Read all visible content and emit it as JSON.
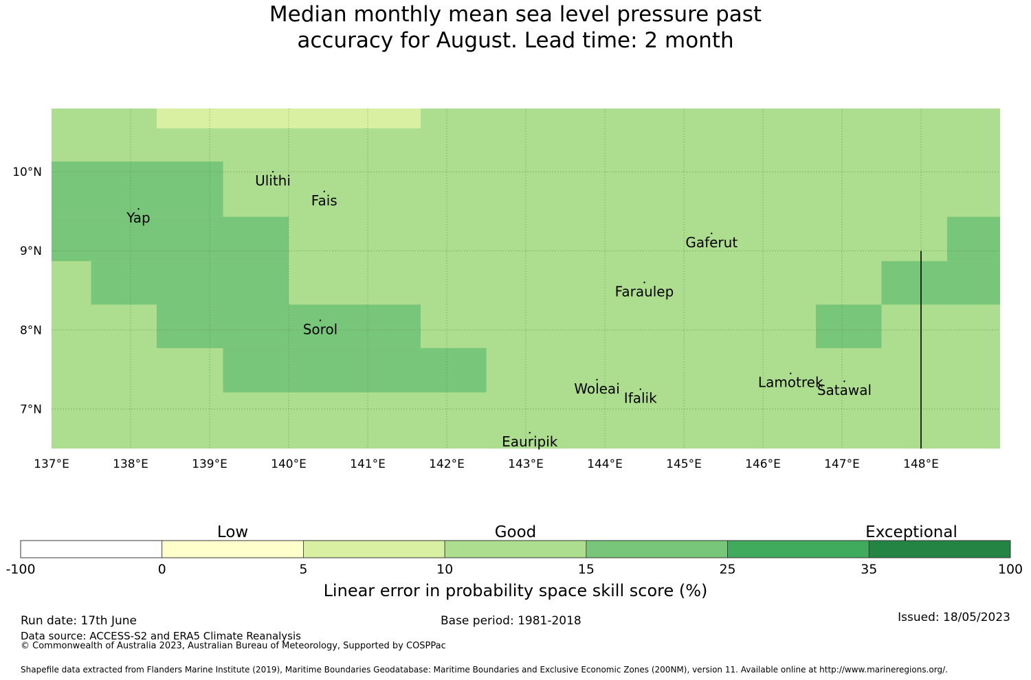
{
  "title": {
    "line1": "Median monthly mean sea level pressure past",
    "line2": "accuracy for August. Lead time: 2 month"
  },
  "map": {
    "lon_range": [
      137.0,
      149.0
    ],
    "lat_range": [
      6.5,
      10.8
    ],
    "lon_ticks": [
      {
        "value": 137,
        "label": "137°E"
      },
      {
        "value": 138,
        "label": "138°E"
      },
      {
        "value": 139,
        "label": "139°E"
      },
      {
        "value": 140,
        "label": "140°E"
      },
      {
        "value": 141,
        "label": "141°E"
      },
      {
        "value": 142,
        "label": "142°E"
      },
      {
        "value": 143,
        "label": "143°E"
      },
      {
        "value": 144,
        "label": "144°E"
      },
      {
        "value": 145,
        "label": "145°E"
      },
      {
        "value": 146,
        "label": "146°E"
      },
      {
        "value": 147,
        "label": "147°E"
      },
      {
        "value": 148,
        "label": "148°E"
      }
    ],
    "lat_ticks": [
      {
        "value": 10,
        "label": "10°N"
      },
      {
        "value": 9,
        "label": "9°N"
      },
      {
        "value": 8,
        "label": "8°N"
      },
      {
        "value": 7,
        "label": "7°N"
      }
    ],
    "background_category": "good_10_15",
    "cells": [
      {
        "lon": [
          138.33,
          141.67
        ],
        "lat": [
          10.55,
          10.8
        ],
        "category": "good_5_10"
      },
      {
        "lon": [
          137.0,
          139.17
        ],
        "lat": [
          9.43,
          10.13
        ],
        "category": "good_15_25"
      },
      {
        "lon": [
          137.0,
          140.0
        ],
        "lat": [
          8.87,
          9.43
        ],
        "category": "good_15_25"
      },
      {
        "lon": [
          137.5,
          140.0
        ],
        "lat": [
          8.32,
          8.87
        ],
        "category": "good_15_25"
      },
      {
        "lon": [
          138.33,
          141.67
        ],
        "lat": [
          7.77,
          8.32
        ],
        "category": "good_15_25"
      },
      {
        "lon": [
          139.17,
          142.5
        ],
        "lat": [
          7.21,
          7.77
        ],
        "category": "good_15_25"
      },
      {
        "lon": [
          148.33,
          149.0
        ],
        "lat": [
          8.87,
          9.43
        ],
        "category": "good_15_25"
      },
      {
        "lon": [
          147.5,
          149.0
        ],
        "lat": [
          8.32,
          8.87
        ],
        "category": "good_15_25"
      },
      {
        "lon": [
          146.67,
          147.5
        ],
        "lat": [
          7.77,
          8.32
        ],
        "category": "good_15_25"
      }
    ],
    "boundary_line": {
      "lon": 148.0,
      "lat": [
        6.5,
        9.0
      ]
    },
    "places": [
      {
        "name": "Ulithi",
        "lon": 139.8,
        "lat": 10.0
      },
      {
        "name": "Fais",
        "lon": 140.45,
        "lat": 9.75
      },
      {
        "name": "Yap",
        "lon": 138.1,
        "lat": 9.53
      },
      {
        "name": "Gaferut",
        "lon": 145.35,
        "lat": 9.22
      },
      {
        "name": "Faraulep",
        "lon": 144.5,
        "lat": 8.6
      },
      {
        "name": "Sorol",
        "lon": 140.4,
        "lat": 8.12
      },
      {
        "name": "Woleai",
        "lon": 143.9,
        "lat": 7.37
      },
      {
        "name": "Ifalik",
        "lon": 144.45,
        "lat": 7.25
      },
      {
        "name": "Lamotrek",
        "lon": 146.35,
        "lat": 7.45
      },
      {
        "name": "Satawal",
        "lon": 147.03,
        "lat": 7.35
      },
      {
        "name": "Eauripik",
        "lon": 143.05,
        "lat": 6.7
      }
    ]
  },
  "colorbar": {
    "bins": [
      {
        "id": "none",
        "from": -100,
        "to": 0,
        "color": "#ffffff"
      },
      {
        "id": "low_0_5",
        "from": 0,
        "to": 5,
        "color": "#ffffcc"
      },
      {
        "id": "good_5_10",
        "from": 5,
        "to": 10,
        "color": "#d9f0a3"
      },
      {
        "id": "good_10_15",
        "from": 10,
        "to": 15,
        "color": "#addd8e"
      },
      {
        "id": "good_15_25",
        "from": 15,
        "to": 25,
        "color": "#78c679"
      },
      {
        "id": "exc_25_35",
        "from": 25,
        "to": 35,
        "color": "#41ab5d"
      },
      {
        "id": "exc_35_100",
        "from": 35,
        "to": 100,
        "color": "#238443"
      }
    ],
    "tick_labels": [
      "-100",
      "0",
      "5",
      "10",
      "15",
      "25",
      "35",
      "100"
    ],
    "categories": [
      "Low",
      "Good",
      "Exceptional"
    ],
    "label": "Linear error in probability space skill score (%)"
  },
  "footer": {
    "run_date": "Run date: 17th June",
    "base_period": "Base period: 1981-2018",
    "issued": "Issued: 18/05/2023",
    "data_source": "Data source: ACCESS-S2 and ERA5 Climate Reanalysis",
    "copyright": "© Commonwealth of Australia 2023, Australian Bureau of Meteorology, Supported by COSPPac",
    "shapefile": "Shapefile data extracted from Flanders Marine Institute (2019), Maritime Boundaries Geodatabase: Maritime Boundaries and Exclusive Economic Zones (200NM), version 11. Available online at http://www.marineregions.org/."
  }
}
